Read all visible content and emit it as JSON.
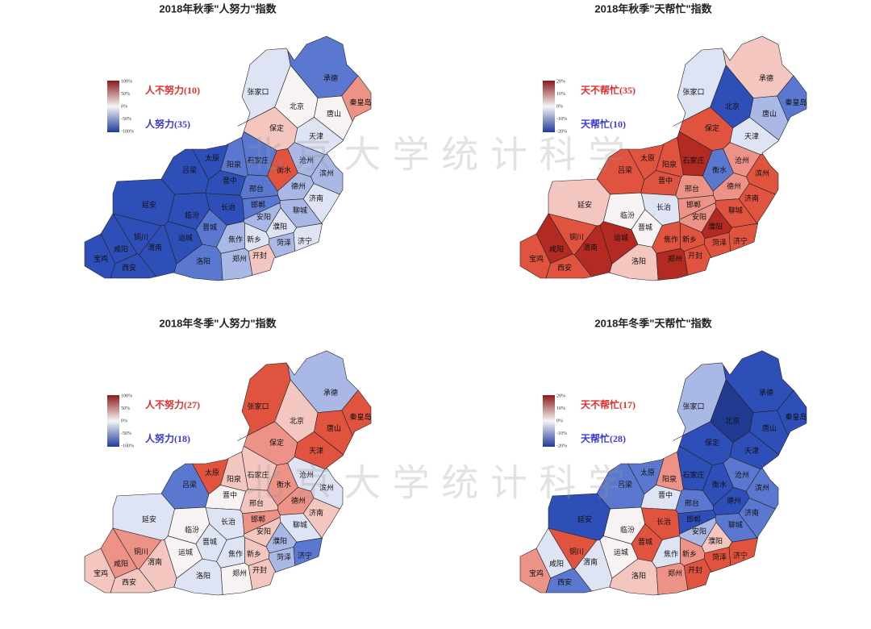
{
  "watermark": "北 京 大 学 统 计 科 学",
  "cities": [
    "张家口",
    "承德",
    "北京",
    "秦皇岛",
    "唐山",
    "保定",
    "天津",
    "石家庄",
    "衡水",
    "沧州",
    "太原",
    "阳泉",
    "吕梁",
    "晋中",
    "滨州",
    "邢台",
    "德州",
    "聊城",
    "济南",
    "临汾",
    "长治",
    "邯郸",
    "濮阳",
    "晋城",
    "延安",
    "铜川",
    "渭南",
    "运城",
    "咸阳",
    "宝鸡",
    "西安",
    "洛阳",
    "焦作",
    "新乡",
    "郑州",
    "开封",
    "菏泽",
    "济宁",
    "安阳"
  ],
  "panels": [
    {
      "title": "2018年秋季\"人努力\"指数",
      "legend_ticks": [
        "100%",
        "50%",
        "0%",
        "-50%",
        "-100%"
      ],
      "legend_labels": [
        {
          "text": "人不努力(10)",
          "color": "#e0302a"
        },
        {
          "text": "人努力(35)",
          "color": "#3a3ad0"
        }
      ],
      "colors": [
        "#dfe4f5",
        "#5a78d0",
        "#f7f3f3",
        "#ec9286",
        "#f7f3f3",
        "#f3c6c0",
        "#dfe4f5",
        "#5a78d0",
        "#e0533f",
        "#aab8e6",
        "#2f4fb8",
        "#5a78d0",
        "#2f4fb8",
        "#2f4fb8",
        "#aab8e6",
        "#5a78d0",
        "#aab8e6",
        "#aab8e6",
        "#dfe4f5",
        "#2f4fb8",
        "#2f4fb8",
        "#5a78d0",
        "#dfe4f5",
        "#5a78d0",
        "#2f4fb8",
        "#2f4fb8",
        "#2f4fb8",
        "#2f4fb8",
        "#2f4fb8",
        "#2f4fb8",
        "#2f4fb8",
        "#5a78d0",
        "#aab8e6",
        "#dfe4f5",
        "#aab8e6",
        "#f3c6c0",
        "#aab8e6",
        "#dfe4f5",
        "#aab8e6"
      ]
    },
    {
      "title": "2018年秋季\"天帮忙\"指数",
      "legend_ticks": [
        "20%",
        "10%",
        "0%",
        "-10%",
        "-20%"
      ],
      "legend_labels": [
        {
          "text": "天不帮忙(35)",
          "color": "#e0302a"
        },
        {
          "text": "天帮忙(10)",
          "color": "#3a3ad0"
        }
      ],
      "colors": [
        "#dfe4f5",
        "#f3c6c0",
        "#2f4fb8",
        "#5a78d0",
        "#aab8e6",
        "#e0533f",
        "#dfe4f5",
        "#b22a22",
        "#5a78d0",
        "#ec9286",
        "#e0533f",
        "#e0533f",
        "#e0533f",
        "#e0533f",
        "#e0533f",
        "#ec9286",
        "#ec9286",
        "#e0533f",
        "#e0533f",
        "#f7f3f3",
        "#dfe4f5",
        "#ec9286",
        "#b22a22",
        "#f7f3f3",
        "#f3c6c0",
        "#e0533f",
        "#b22a22",
        "#b22a22",
        "#b22a22",
        "#e0533f",
        "#e0533f",
        "#f3c6c0",
        "#e0533f",
        "#e0533f",
        "#b22a22",
        "#e0533f",
        "#e0533f",
        "#e0533f",
        "#ec9286"
      ]
    },
    {
      "title": "2018年冬季\"人努力\"指数",
      "legend_ticks": [
        "100%",
        "50%",
        "0%",
        "-50%",
        "-100%"
      ],
      "legend_labels": [
        {
          "text": "人不努力(27)",
          "color": "#e0302a"
        },
        {
          "text": "人努力(18)",
          "color": "#3a3ad0"
        }
      ],
      "colors": [
        "#e0533f",
        "#aab8e6",
        "#f3c6c0",
        "#e0533f",
        "#e0533f",
        "#ec9286",
        "#e0533f",
        "#f3c6c0",
        "#ec9286",
        "#dfe4f5",
        "#e0533f",
        "#f3c6c0",
        "#5a78d0",
        "#f7f3f3",
        "#dfe4f5",
        "#f3c6c0",
        "#ec9286",
        "#dfe4f5",
        "#f3c6c0",
        "#f7f3f3",
        "#dfe4f5",
        "#ec9286",
        "#aab8e6",
        "#dfe4f5",
        "#dfe4f5",
        "#ec9286",
        "#f3c6c0",
        "#f7f3f3",
        "#ec9286",
        "#f3c6c0",
        "#f3c6c0",
        "#dfe4f5",
        "#dfe4f5",
        "#f3c6c0",
        "#f7f3f3",
        "#f3c6c0",
        "#aab8e6",
        "#5a78d0",
        "#f3c6c0"
      ]
    },
    {
      "title": "2018年冬季\"天帮忙\"指数",
      "legend_ticks": [
        "20%",
        "10%",
        "0%",
        "-10%",
        "-20%"
      ],
      "legend_labels": [
        {
          "text": "天不帮忙(17)",
          "color": "#e0302a"
        },
        {
          "text": "天帮忙(28)",
          "color": "#3a3ad0"
        }
      ],
      "colors": [
        "#aab8e6",
        "#2f4fb8",
        "#1f3a8f",
        "#2f4fb8",
        "#2f4fb8",
        "#2f4fb8",
        "#2f4fb8",
        "#2f4fb8",
        "#2f4fb8",
        "#5a78d0",
        "#5a78d0",
        "#ec9286",
        "#5a78d0",
        "#dfe4f5",
        "#5a78d0",
        "#5a78d0",
        "#2f4fb8",
        "#5a78d0",
        "#5a78d0",
        "#f7f3f3",
        "#e0533f",
        "#2f4fb8",
        "#f3c6c0",
        "#e0533f",
        "#2f4fb8",
        "#e0533f",
        "#dfe4f5",
        "#f7f3f3",
        "#dfe4f5",
        "#ec9286",
        "#5a78d0",
        "#f3c6c0",
        "#dfe4f5",
        "#ec9286",
        "#ec9286",
        "#e0533f",
        "#e0533f",
        "#e0533f",
        "#aab8e6"
      ]
    }
  ]
}
